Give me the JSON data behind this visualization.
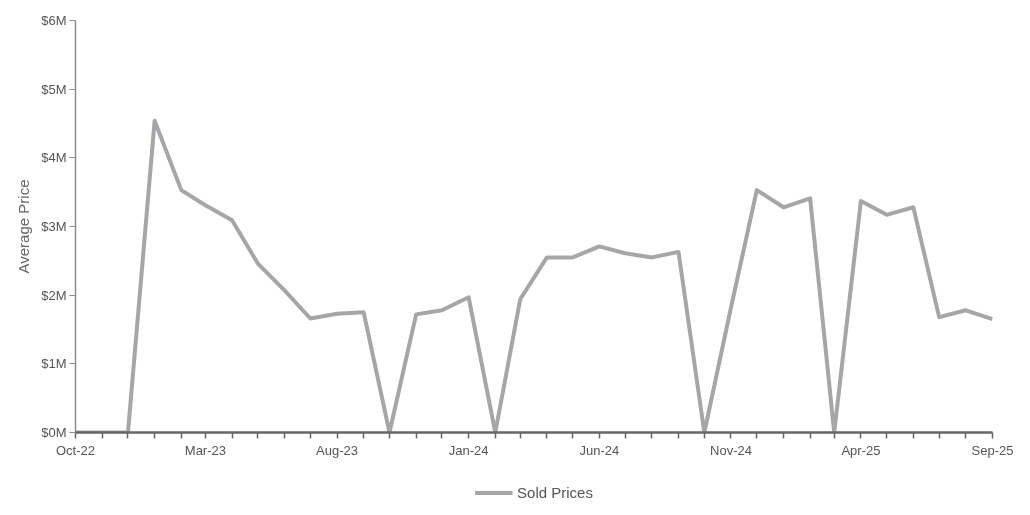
{
  "chart_data": {
    "type": "line",
    "ylabel": "Average Price",
    "x": [
      "2022-10",
      "2022-11",
      "2022-12",
      "2023-01",
      "2023-02",
      "2023-03",
      "2023-04",
      "2023-05",
      "2023-06",
      "2023-07",
      "2023-08",
      "2023-09",
      "2023-10",
      "2023-11",
      "2023-12",
      "2024-01",
      "2024-02",
      "2024-03",
      "2024-04",
      "2024-05",
      "2024-06",
      "2024-07",
      "2024-08",
      "2024-09",
      "2024-10",
      "2024-11",
      "2024-12",
      "2025-01",
      "2025-02",
      "2025-03",
      "2025-04",
      "2025-05",
      "2025-06",
      "2025-07",
      "2025-08",
      "2025-09"
    ],
    "series": [
      {
        "name": "Sold Prices",
        "color": "#a6a6a9",
        "values": [
          0,
          0,
          0,
          4.54,
          3.53,
          3.31,
          3.09,
          2.46,
          2.07,
          1.66,
          1.73,
          1.75,
          0,
          1.72,
          1.78,
          1.97,
          0,
          1.94,
          2.55,
          2.55,
          2.71,
          2.61,
          2.55,
          2.63,
          0,
          1.82,
          3.53,
          3.28,
          3.41,
          0,
          3.37,
          3.17,
          3.28,
          1.68,
          1.78,
          1.65
        ]
      }
    ],
    "xlim": [
      "2022-10",
      "2025-09"
    ],
    "xticks": [
      {
        "value": "2022-10",
        "label": "Oct-22"
      },
      {
        "value": "2022-11",
        "label": null
      },
      {
        "value": "2022-12",
        "label": null
      },
      {
        "value": "2023-01",
        "label": null
      },
      {
        "value": "2023-02",
        "label": null
      },
      {
        "value": "2023-03",
        "label": "Mar-23"
      },
      {
        "value": "2023-04",
        "label": null
      },
      {
        "value": "2023-05",
        "label": null
      },
      {
        "value": "2023-06",
        "label": null
      },
      {
        "value": "2023-07",
        "label": null
      },
      {
        "value": "2023-08",
        "label": "Aug-23"
      },
      {
        "value": "2023-09",
        "label": null
      },
      {
        "value": "2023-10",
        "label": null
      },
      {
        "value": "2023-11",
        "label": null
      },
      {
        "value": "2023-12",
        "label": null
      },
      {
        "value": "2024-01",
        "label": "Jan-24"
      },
      {
        "value": "2024-02",
        "label": null
      },
      {
        "value": "2024-03",
        "label": null
      },
      {
        "value": "2024-04",
        "label": null
      },
      {
        "value": "2024-05",
        "label": null
      },
      {
        "value": "2024-06",
        "label": "Jun-24"
      },
      {
        "value": "2024-07",
        "label": null
      },
      {
        "value": "2024-08",
        "label": null
      },
      {
        "value": "2024-09",
        "label": null
      },
      {
        "value": "2024-10",
        "label": null
      },
      {
        "value": "2024-11",
        "label": "Nov-24"
      },
      {
        "value": "2024-12",
        "label": null
      },
      {
        "value": "2025-01",
        "label": null
      },
      {
        "value": "2025-02",
        "label": null
      },
      {
        "value": "2025-03",
        "label": null
      },
      {
        "value": "2025-04",
        "label": "Apr-25"
      },
      {
        "value": "2025-05",
        "label": null
      },
      {
        "value": "2025-06",
        "label": null
      },
      {
        "value": "2025-07",
        "label": null
      },
      {
        "value": "2025-08",
        "label": null
      },
      {
        "value": "2025-09",
        "label": "Sep-25"
      }
    ],
    "ylim": [
      0,
      6
    ],
    "yticks": [
      {
        "value": 0,
        "label": "$0M"
      },
      {
        "value": 1,
        "label": "$1M"
      },
      {
        "value": 2,
        "label": "$2M"
      },
      {
        "value": 3,
        "label": "$3M"
      },
      {
        "value": 4,
        "label": "$4M"
      },
      {
        "value": 5,
        "label": "$5M"
      },
      {
        "value": 6,
        "label": "$6M"
      }
    ],
    "legend": "bottom",
    "line_style": "solid"
  }
}
